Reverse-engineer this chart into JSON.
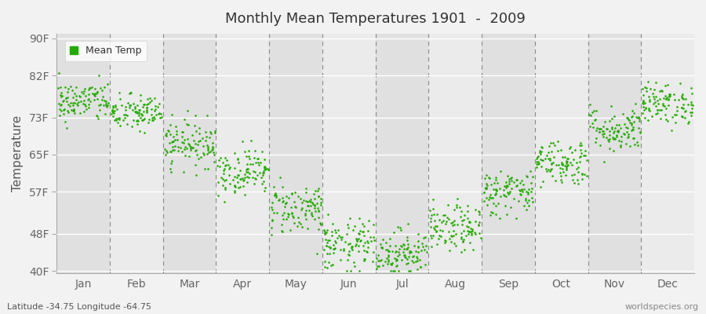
{
  "title": "Monthly Mean Temperatures 1901  -  2009",
  "ylabel": "Temperature",
  "xlabel_labels": [
    "Jan",
    "Feb",
    "Mar",
    "Apr",
    "May",
    "Jun",
    "Jul",
    "Aug",
    "Sep",
    "Oct",
    "Nov",
    "Dec"
  ],
  "yticks": [
    40,
    48,
    57,
    65,
    73,
    82,
    90
  ],
  "ytick_labels": [
    "40F",
    "48F",
    "57F",
    "65F",
    "73F",
    "82F",
    "90F"
  ],
  "ylim": [
    39.5,
    91
  ],
  "background_color": "#f2f2f2",
  "plot_bg_color": "#e8e8e8",
  "dot_color": "#22aa00",
  "legend_label": "Mean Temp",
  "subtitle_lat": "Latitude -34.75 Longitude -64.75",
  "watermark": "worldspecies.org",
  "monthly_means": [
    76.5,
    74.0,
    67.5,
    61.5,
    53.5,
    45.5,
    44.0,
    49.0,
    57.0,
    63.5,
    70.5,
    76.0
  ],
  "monthly_stds": [
    2.2,
    2.0,
    2.5,
    2.5,
    2.8,
    2.8,
    2.5,
    2.5,
    2.5,
    2.5,
    2.5,
    2.2
  ],
  "n_years": 109,
  "seed": 42,
  "figsize": [
    9.0,
    4.0
  ],
  "dpi": 100
}
